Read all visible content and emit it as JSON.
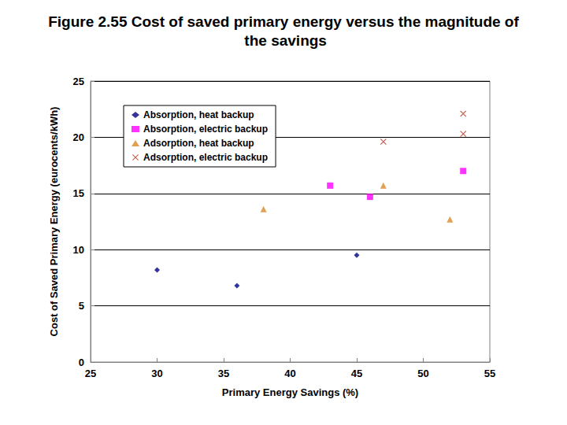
{
  "chart_data": {
    "type": "scatter",
    "title": "Figure 2.55 Cost of saved primary energy versus the magnitude of the savings",
    "x_label": "Primary Energy Savings (%)",
    "y_label": "Cost of Saved Primary Energy (eurocents/kWh)",
    "xlim": [
      25,
      55
    ],
    "xticks": [
      25,
      30,
      35,
      40,
      45,
      50,
      55
    ],
    "ylim": [
      0,
      25
    ],
    "yticks": [
      0,
      5,
      10,
      15,
      20,
      25
    ],
    "grid": true,
    "legend": "upper left",
    "series": [
      {
        "name": "Absorption, heat backup",
        "color": "#000080",
        "marker": "diamond",
        "x": [
          30,
          36,
          45
        ],
        "values": [
          8.2,
          6.8,
          9.5
        ]
      },
      {
        "name": "Absorption, electric backup",
        "color": "#ff00ff",
        "marker": "square",
        "x": [
          43,
          46,
          53
        ],
        "values": [
          15.7,
          14.7,
          17.0
        ]
      },
      {
        "name": "Adsorption, heat backup",
        "color": "#d98a2b",
        "marker": "triangle",
        "x": [
          38,
          47,
          52
        ],
        "values": [
          13.6,
          15.7,
          12.7
        ]
      },
      {
        "name": "Adsorption, electric backup",
        "color": "#c0392b",
        "marker": "x",
        "x": [
          47,
          53,
          53
        ],
        "values": [
          19.6,
          22.1,
          20.3
        ]
      }
    ]
  }
}
